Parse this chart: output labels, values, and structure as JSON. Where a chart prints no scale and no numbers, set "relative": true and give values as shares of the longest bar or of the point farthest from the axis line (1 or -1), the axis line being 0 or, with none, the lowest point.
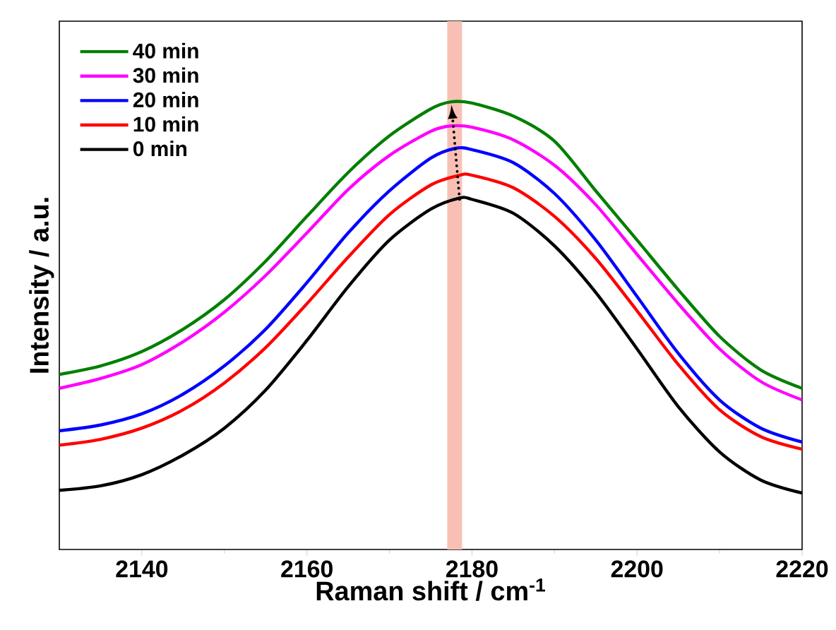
{
  "chart_data": {
    "type": "line",
    "xlabel": "Raman shift / cm$^{-1}$",
    "ylabel": "Intensity / a.u.",
    "relative": true,
    "xlim": [
      2130,
      2220
    ],
    "xticks": [
      2140,
      2160,
      2180,
      2200,
      2220
    ],
    "tick_labels": "x",
    "grid": false,
    "legend": "top left",
    "marker": "none",
    "line_style": "solid",
    "bands": [
      {
        "axis": "x",
        "from": 2177,
        "to": 2178.8,
        "color": "#f8c0b4"
      }
    ],
    "series": [
      {
        "name": "40 min",
        "color": "#007f00",
        "x": [
          2130,
          2135,
          2140,
          2145,
          2150,
          2155,
          2160,
          2165,
          2170,
          2175,
          2177.5,
          2180,
          2185,
          2190,
          2195,
          2200,
          2205,
          2210,
          2215,
          2220
        ],
        "values": [
          0.391,
          0.41,
          0.442,
          0.492,
          0.558,
          0.644,
          0.744,
          0.842,
          0.924,
          0.984,
          1.0,
          0.997,
          0.968,
          0.912,
          0.801,
          0.691,
          0.58,
          0.476,
          0.401,
          0.36
        ]
      },
      {
        "name": "30 min",
        "color": "#ff00ff",
        "x": [
          2130,
          2135,
          2140,
          2145,
          2150,
          2155,
          2160,
          2165,
          2170,
          2175,
          2177.5,
          2180,
          2185,
          2190,
          2195,
          2200,
          2205,
          2210,
          2215,
          2220
        ],
        "values": [
          0.36,
          0.382,
          0.413,
          0.464,
          0.53,
          0.612,
          0.707,
          0.804,
          0.88,
          0.934,
          0.946,
          0.943,
          0.915,
          0.858,
          0.77,
          0.659,
          0.549,
          0.448,
          0.375,
          0.334
        ]
      },
      {
        "name": "20 min",
        "color": "#0000ff",
        "x": [
          2130,
          2135,
          2140,
          2145,
          2150,
          2155,
          2160,
          2165,
          2170,
          2175,
          2178,
          2180,
          2185,
          2190,
          2195,
          2200,
          2205,
          2210,
          2215,
          2220
        ],
        "values": [
          0.265,
          0.278,
          0.303,
          0.347,
          0.41,
          0.492,
          0.596,
          0.707,
          0.801,
          0.874,
          0.896,
          0.893,
          0.864,
          0.795,
          0.691,
          0.565,
          0.438,
          0.334,
          0.271,
          0.24
        ]
      },
      {
        "name": "10 min",
        "color": "#ff0000",
        "x": [
          2130,
          2135,
          2140,
          2145,
          2150,
          2155,
          2160,
          2165,
          2170,
          2175,
          2178.5,
          2180,
          2185,
          2190,
          2195,
          2200,
          2205,
          2210,
          2215,
          2220
        ],
        "values": [
          0.233,
          0.246,
          0.271,
          0.312,
          0.372,
          0.451,
          0.549,
          0.653,
          0.748,
          0.814,
          0.836,
          0.836,
          0.808,
          0.744,
          0.65,
          0.533,
          0.413,
          0.312,
          0.252,
          0.224
        ]
      },
      {
        "name": "0 min",
        "color": "#000000",
        "x": [
          2130,
          2135,
          2140,
          2145,
          2150,
          2155,
          2160,
          2165,
          2170,
          2175,
          2178.5,
          2180,
          2185,
          2190,
          2195,
          2200,
          2205,
          2210,
          2215,
          2220
        ],
        "values": [
          0.132,
          0.142,
          0.167,
          0.211,
          0.271,
          0.356,
          0.467,
          0.587,
          0.691,
          0.76,
          0.785,
          0.782,
          0.751,
          0.678,
          0.574,
          0.448,
          0.319,
          0.218,
          0.155,
          0.126
        ]
      }
    ]
  }
}
